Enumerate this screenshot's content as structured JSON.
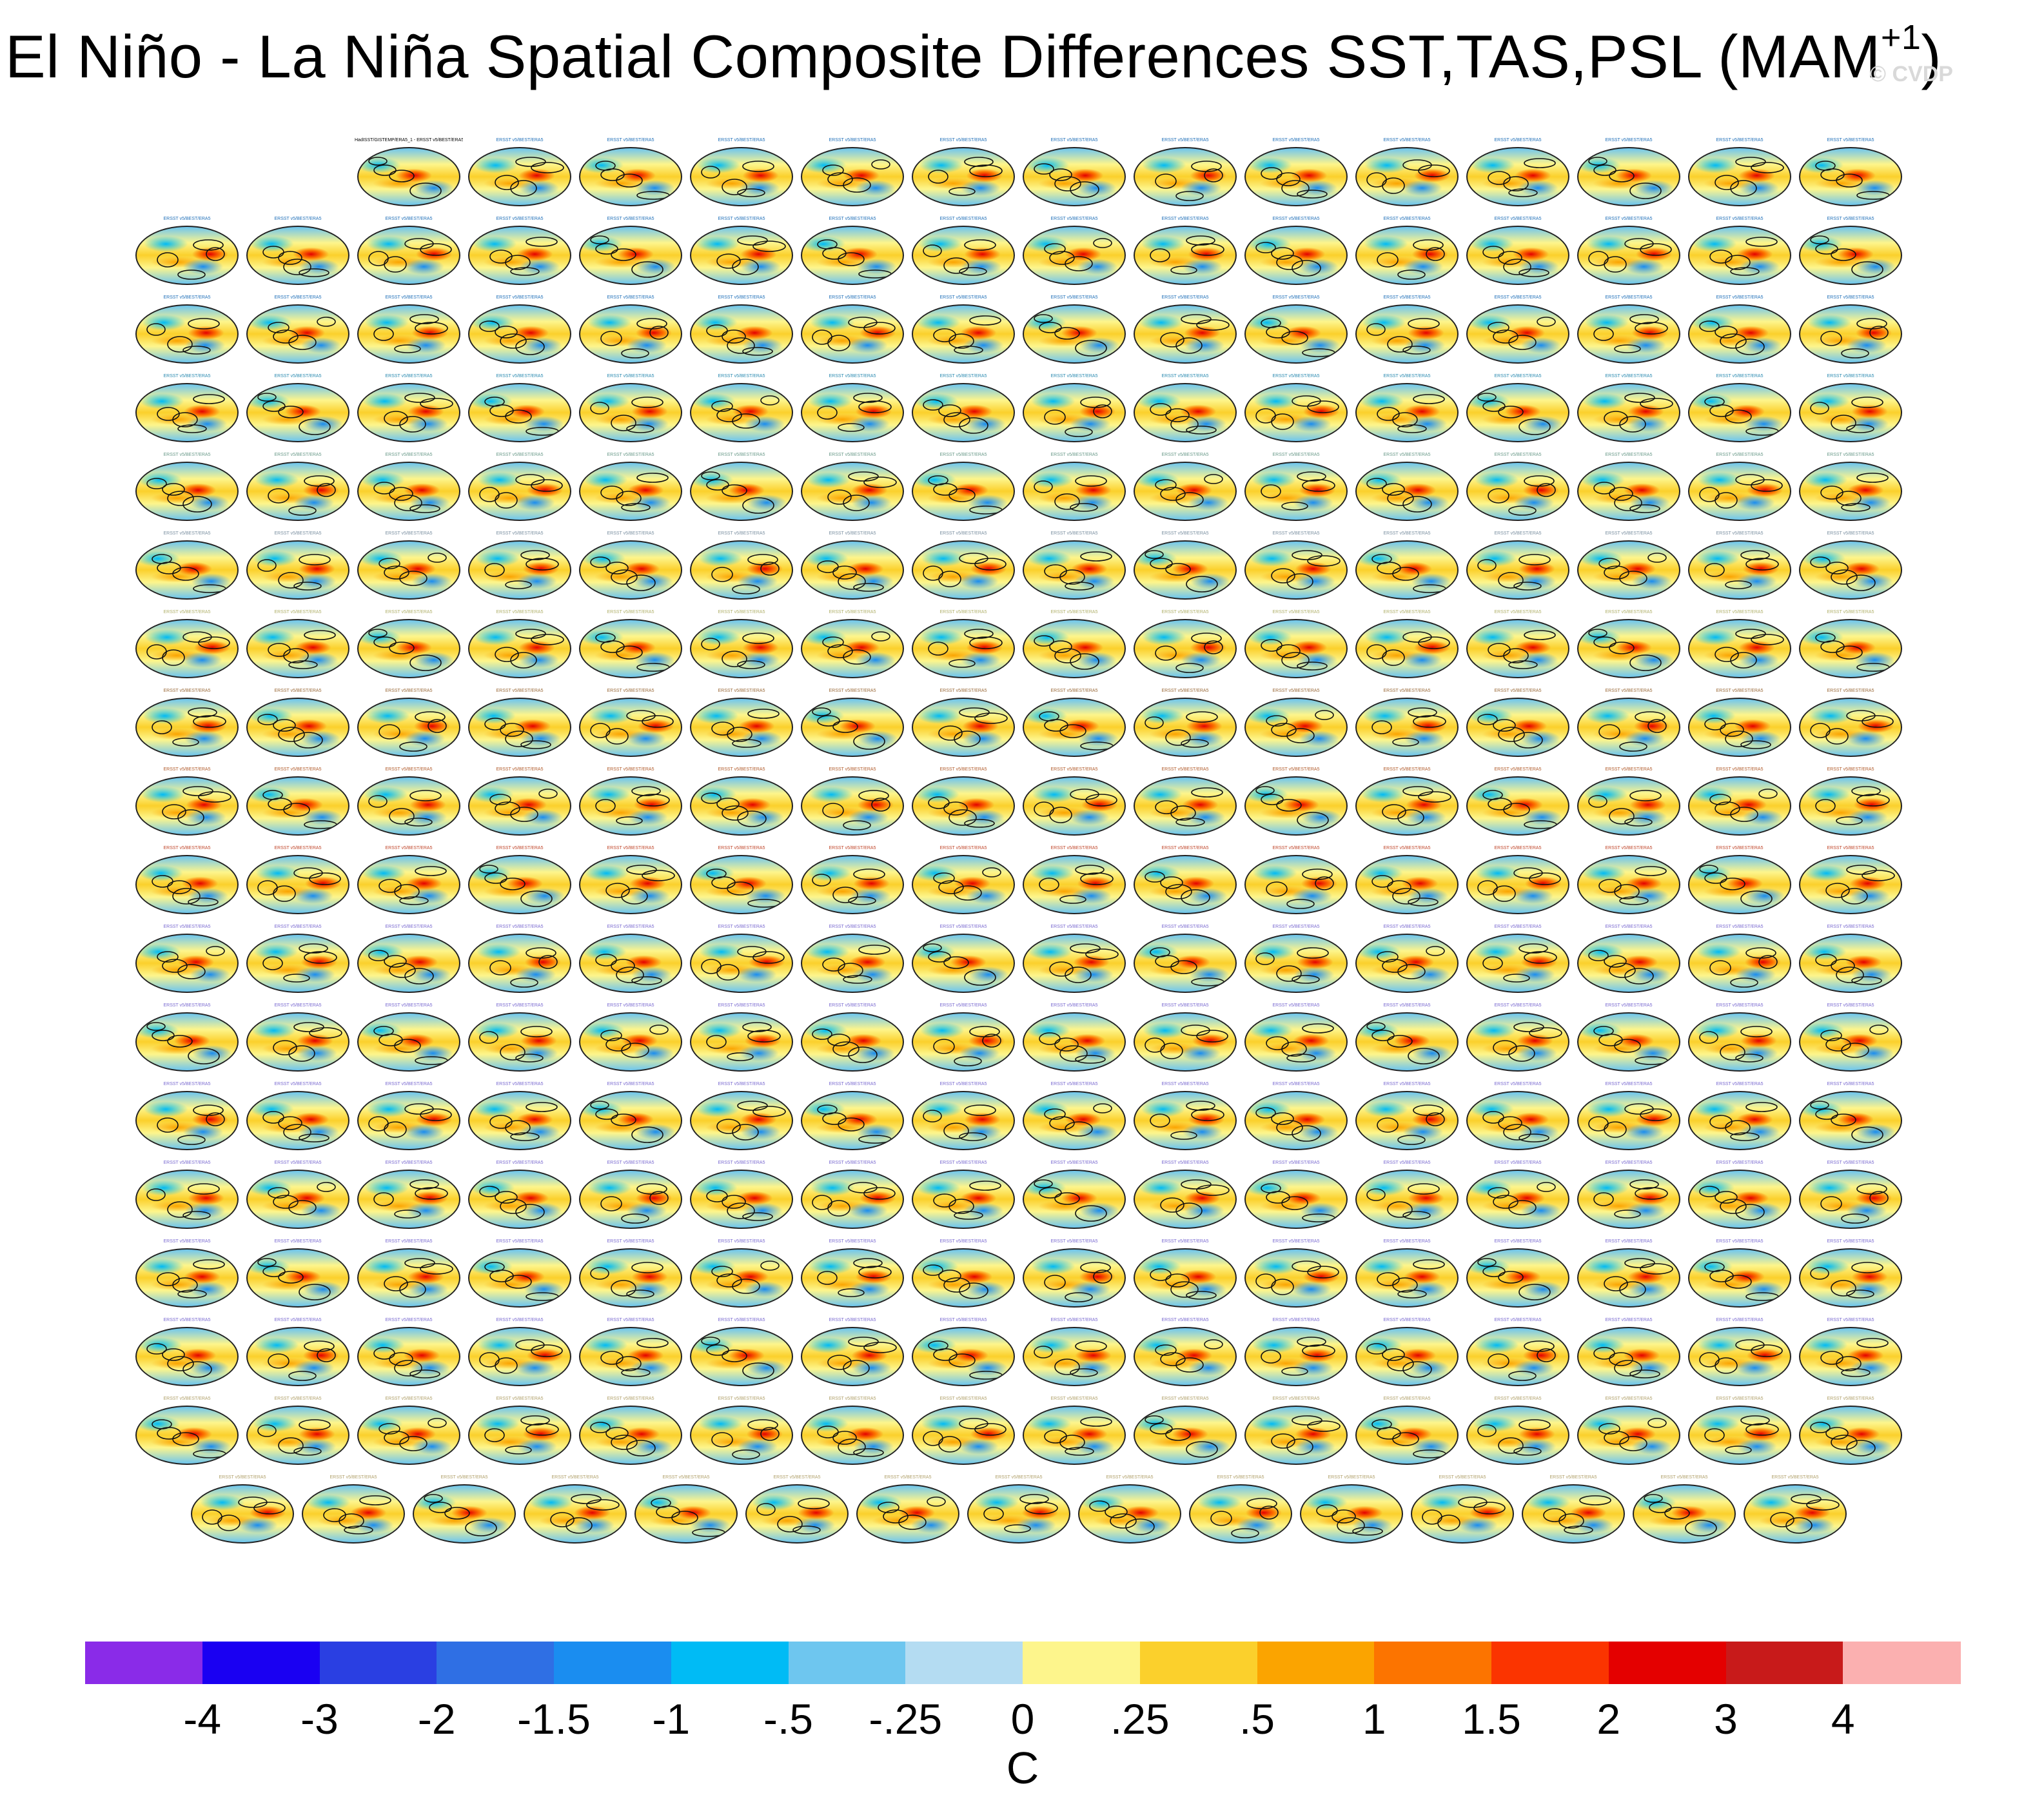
{
  "title": "El Niño - La Niña Spatial Composite Differences SST,TAS,PSL (MAM",
  "title_superscript": "+1",
  "title_close": ")",
  "watermark": "© CVDP",
  "chart_data": {
    "type": "heatmap",
    "description_type": "panel grid of global composite maps",
    "variables": [
      "SST",
      "TAS",
      "PSL"
    ],
    "season": "MAM+1",
    "panel_label_first": "HadISST/GISTEMP/ERA5_1 - ERSST v5/BEST/ERA5",
    "panel_label_template": "ERSST v5/BEST/ERA5",
    "panel_rows": [
      14,
      16,
      16,
      16,
      16,
      16,
      16,
      16,
      16,
      16,
      16,
      16,
      16,
      16,
      16,
      16,
      16,
      15
    ],
    "colorbar": {
      "units": "C",
      "levels": [
        "-4",
        "-3",
        "-2",
        "-1.5",
        "-1",
        "-.5",
        "-.25",
        "0",
        ".25",
        ".5",
        "1",
        "1.5",
        "2",
        "3",
        "4"
      ],
      "colors": [
        "#8a2be8",
        "#1a00f2",
        "#2a3fe2",
        "#2f6fe4",
        "#1a8df0",
        "#00bbf5",
        "#6ec6ef",
        "#b4dcf2",
        "#fdf58c",
        "#fbd02c",
        "#fba400",
        "#fc7400",
        "#fb3400",
        "#e40000",
        "#c81a1a",
        "#fbb0b0"
      ]
    },
    "caption_colors": [
      "#1f6fb8",
      "#1f6fb8",
      "#1f6fb8",
      "#2a8ab0",
      "#6a9a8a",
      "#7a8fa0",
      "#b0b06a",
      "#9a6a3a",
      "#b05a2a",
      "#c0462a",
      "#7a6ad0",
      "#7a6ad0",
      "#7a6ad0",
      "#7a6ad0",
      "#7a6ad0",
      "#7a6ad0",
      "#b0a06a",
      "#b0a06a"
    ]
  }
}
